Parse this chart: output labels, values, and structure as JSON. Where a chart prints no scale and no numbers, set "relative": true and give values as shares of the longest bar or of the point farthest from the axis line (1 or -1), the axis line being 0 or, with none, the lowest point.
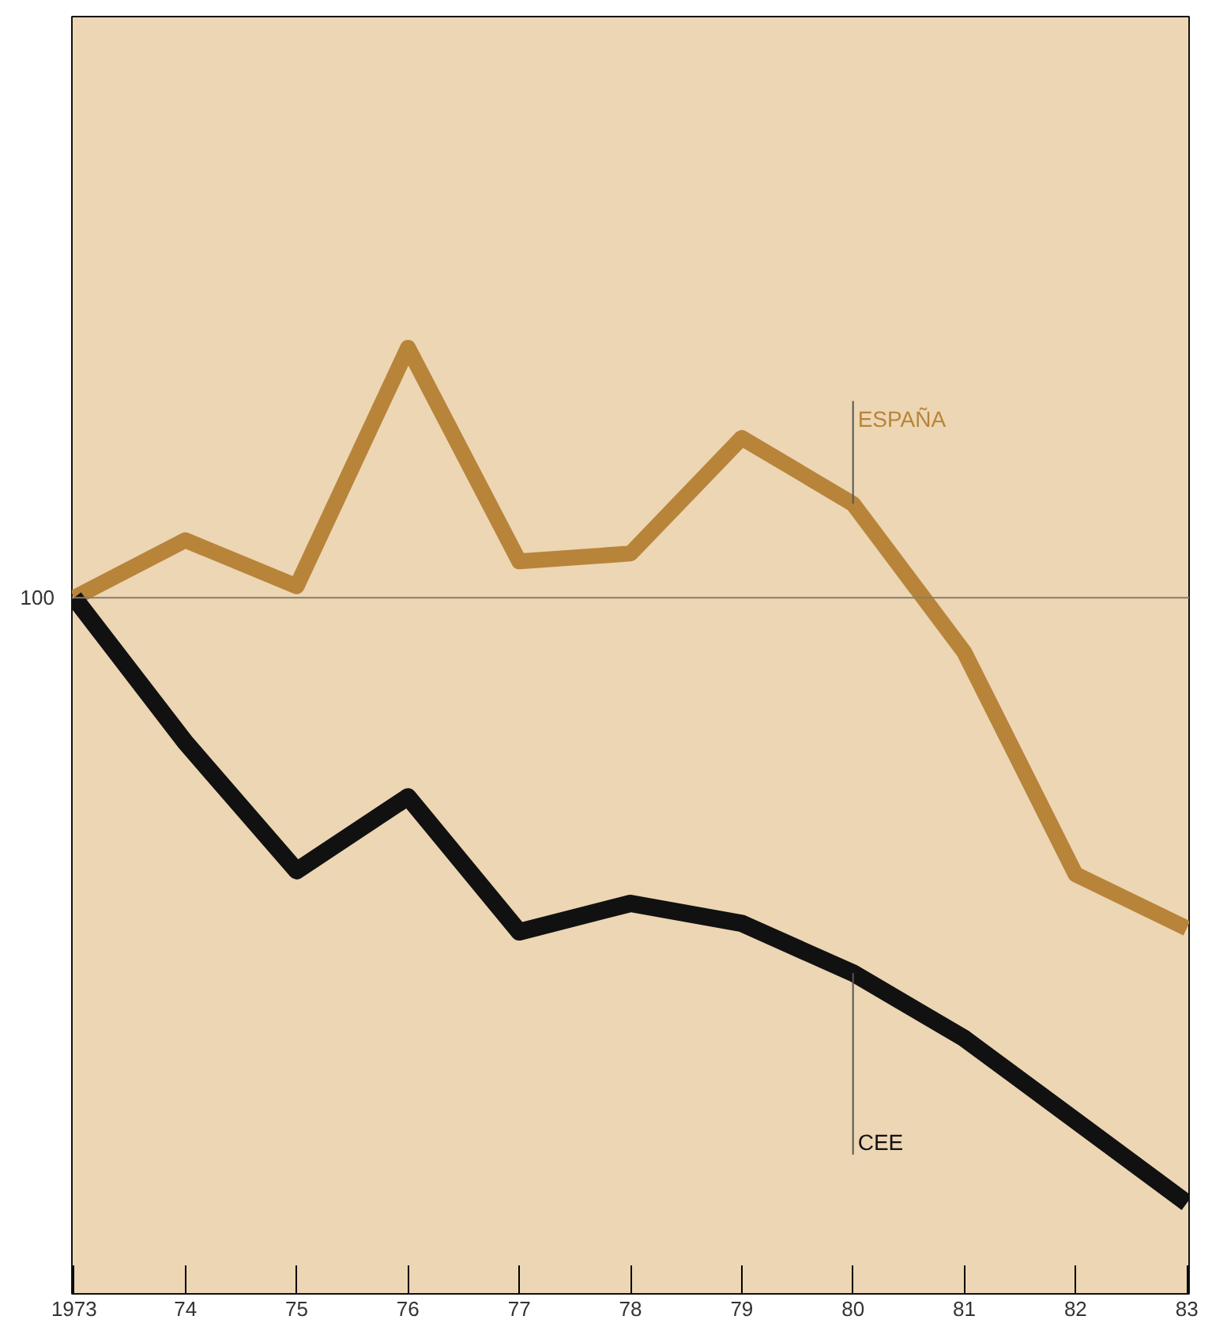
{
  "chart_data": {
    "type": "line",
    "relative": true,
    "tick_labels": "x",
    "categories": [
      "1973",
      "74",
      "75",
      "76",
      "77",
      "78",
      "79",
      "80",
      "81",
      "82",
      "83"
    ],
    "series": [
      {
        "name": "ESPAÑA",
        "color": "#b8843a",
        "values": [
          0,
          0.095,
          0.019,
          0.413,
          0.06,
          0.073,
          0.264,
          0.155,
          -0.09,
          -0.457,
          -0.546
        ]
      },
      {
        "name": "CEE",
        "color": "#111111",
        "values": [
          0,
          -0.239,
          -0.451,
          -0.329,
          -0.552,
          -0.505,
          -0.538,
          -0.62,
          -0.728,
          -0.864,
          -1
        ]
      }
    ],
    "annotations": [
      {
        "text": "100",
        "x": "1973",
        "y": 0
      }
    ]
  }
}
